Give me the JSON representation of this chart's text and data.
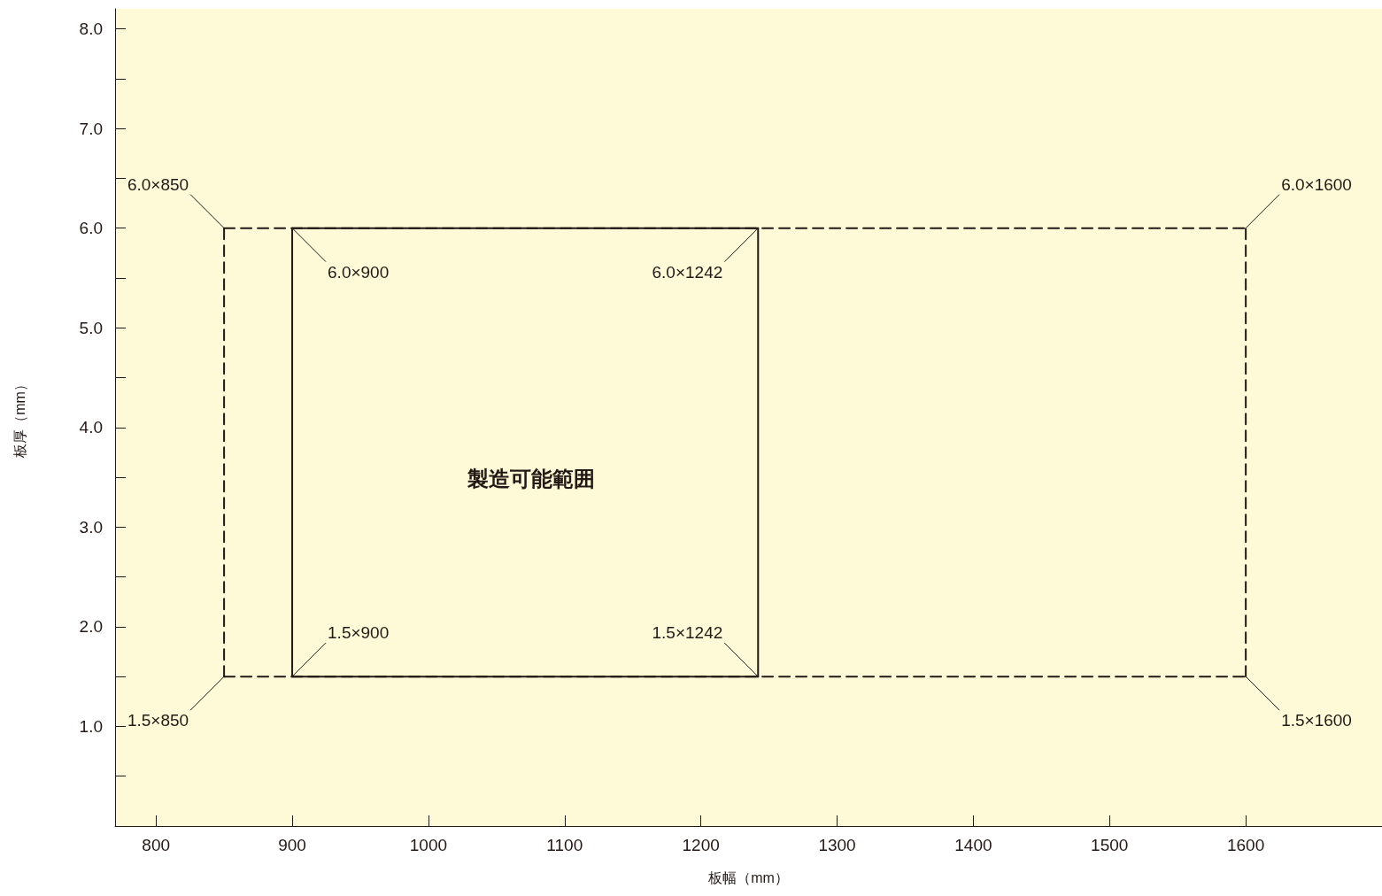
{
  "chart_data": {
    "type": "line",
    "xlabel": "板幅（mm）",
    "ylabel": "板厚（mm）",
    "xlim": [
      770,
      1700
    ],
    "xticks": [
      800,
      900,
      1000,
      1100,
      1200,
      1300,
      1400,
      1500,
      1600
    ],
    "ylim": [
      0,
      8.2
    ],
    "yticks": [
      {
        "value": 0.5,
        "label": null
      },
      {
        "value": 1,
        "label": "1.0"
      },
      {
        "value": 1.5,
        "label": null
      },
      {
        "value": 2,
        "label": "2.0"
      },
      {
        "value": 2.5,
        "label": null
      },
      {
        "value": 3,
        "label": "3.0"
      },
      {
        "value": 3.5,
        "label": null
      },
      {
        "value": 4,
        "label": "4.0"
      },
      {
        "value": 4.5,
        "label": null
      },
      {
        "value": 5,
        "label": "5.0"
      },
      {
        "value": 5.5,
        "label": null
      },
      {
        "value": 6,
        "label": "6.0"
      },
      {
        "value": 6.5,
        "label": null
      },
      {
        "value": 7,
        "label": "7.0"
      },
      {
        "value": 7.5,
        "label": null
      },
      {
        "value": 8,
        "label": "8.0"
      }
    ],
    "grid": false,
    "marker": "none",
    "series": [
      {
        "color": "#231815",
        "line_style": "dashed",
        "x": [
          850,
          1600
        ],
        "values": [
          6.0,
          6.0
        ]
      },
      {
        "color": "#231815",
        "line_style": "dashed",
        "x": [
          850,
          1600
        ],
        "values": [
          1.5,
          1.5
        ]
      },
      {
        "color": "#231815",
        "line_style": "dashed",
        "x": [
          850,
          850
        ],
        "values": [
          1.5,
          6.0
        ]
      },
      {
        "color": "#231815",
        "line_style": "dashed",
        "x": [
          1600,
          1600
        ],
        "values": [
          1.5,
          6.0
        ]
      },
      {
        "color": "#231815",
        "line_style": "solid",
        "x": [
          900,
          1242
        ],
        "values": [
          6.0,
          6.0
        ]
      },
      {
        "color": "#231815",
        "line_style": "solid",
        "x": [
          900,
          1242
        ],
        "values": [
          1.5,
          1.5
        ]
      },
      {
        "color": "#231815",
        "line_style": "solid",
        "x": [
          900,
          900
        ],
        "values": [
          1.5,
          6.0
        ]
      },
      {
        "color": "#231815",
        "line_style": "solid",
        "x": [
          1242,
          1242
        ],
        "values": [
          1.5,
          6.0
        ]
      }
    ],
    "annotations": [
      {
        "text": "6.0×850",
        "x": 850,
        "y": 6.0
      },
      {
        "text": "6.0×1600",
        "x": 1600,
        "y": 6.0
      },
      {
        "text": "1.5×850",
        "x": 850,
        "y": 1.5
      },
      {
        "text": "1.5×1600",
        "x": 1600,
        "y": 1.5
      },
      {
        "text": "6.0×900",
        "x": 900,
        "y": 6.0
      },
      {
        "text": "6.0×1242",
        "x": 1242,
        "y": 6.0
      },
      {
        "text": "1.5×900",
        "x": 900,
        "y": 1.5
      },
      {
        "text": "1.5×1242",
        "x": 1242,
        "y": 1.5
      },
      "製造可能範囲"
    ]
  }
}
